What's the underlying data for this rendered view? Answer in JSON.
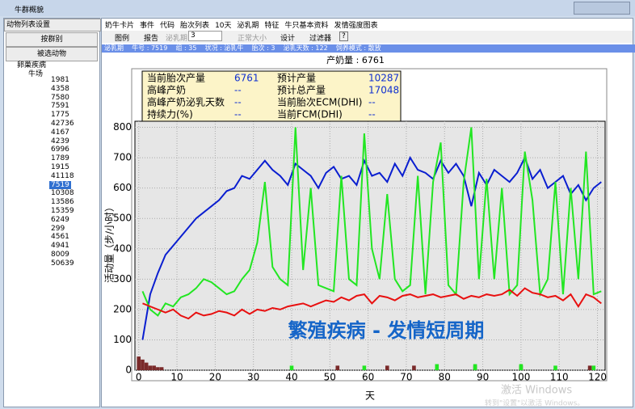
{
  "window": {
    "title": "牛群概貌"
  },
  "menu": [
    "奶牛卡片",
    "事件",
    "代码",
    "胎次列表",
    "10天",
    "泌乳期",
    "特征",
    "牛只基本资料",
    "发情强度图表"
  ],
  "toolbar": {
    "legend": "图例",
    "report": "报告",
    "lactation": "泌乳期",
    "lactation_value": "3",
    "normal_size": "正常大小",
    "design": "设计",
    "filter": "过滤器",
    "help": "?"
  },
  "status_bar": "泌乳期    牛号 : 7519    组 : 35    状况 : 泌乳牛    胎次 : 3    泌乳天数 : 122    饲养模式 : 散放",
  "left_panel": {
    "dropdown": "动物列表设置",
    "by_group": "按群别",
    "selected_animals": "被选动物",
    "tree": {
      "root": "卵巢疾病",
      "farm": "牛场",
      "animals": [
        "1981",
        "4358",
        "7580",
        "7591",
        "1775",
        "42736",
        "4167",
        "4239",
        "6996",
        "1789",
        "1915",
        "41118",
        "7519",
        "10308",
        "13586",
        "15359",
        "6249",
        "299",
        "4561",
        "4941",
        "8009",
        "50639"
      ]
    }
  },
  "info_box": [
    [
      "当前胎次产量",
      6761,
      "预计产量",
      10287
    ],
    [
      "高峰产奶",
      "--",
      "预计总产量",
      17048
    ],
    [
      "高峰产奶泌乳天数",
      "--",
      "当前胎次ECM(DHI)",
      "--"
    ],
    [
      "持续力(%)",
      "--",
      "当前FCM(DHI)",
      "--"
    ]
  ],
  "overlay_text": "繁殖疾病 - 发情短周期",
  "watermark": [
    "激活 Windows",
    "转到\"设置\"以激活 Windows。"
  ],
  "chart_data": {
    "type": "line",
    "title": "产奶量 : 6761",
    "x_label": "天",
    "y_label": "活动量（步/小时）",
    "xlim": [
      -1,
      122
    ],
    "xticks": [
      0,
      10,
      20,
      30,
      40,
      50,
      60,
      70,
      80,
      90,
      100,
      110,
      120
    ],
    "ylim": [
      0,
      820
    ],
    "yticks": [
      0,
      100,
      200,
      300,
      400,
      500,
      600,
      700,
      800
    ],
    "grid": true,
    "x": [
      1,
      3,
      5,
      7,
      9,
      11,
      13,
      15,
      17,
      19,
      21,
      23,
      25,
      27,
      29,
      31,
      33,
      35,
      37,
      39,
      41,
      43,
      45,
      47,
      49,
      51,
      53,
      55,
      57,
      59,
      61,
      63,
      65,
      67,
      69,
      71,
      73,
      75,
      77,
      79,
      81,
      83,
      85,
      87,
      89,
      91,
      93,
      95,
      97,
      99,
      101,
      103,
      105,
      107,
      109,
      111,
      113,
      115,
      117,
      119,
      121
    ],
    "series": [
      {
        "color": "#0a1ed0",
        "values": [
          100,
          250,
          320,
          380,
          410,
          440,
          470,
          500,
          520,
          540,
          560,
          590,
          600,
          640,
          630,
          660,
          690,
          660,
          640,
          610,
          680,
          660,
          640,
          600,
          650,
          670,
          630,
          640,
          610,
          690,
          640,
          650,
          620,
          680,
          640,
          700,
          660,
          650,
          630,
          690,
          650,
          680,
          640,
          540,
          650,
          610,
          660,
          640,
          620,
          650,
          700,
          630,
          660,
          600,
          620,
          640,
          580,
          610,
          560,
          600,
          620
        ]
      },
      {
        "color": "#22e622",
        "values": [
          260,
          200,
          180,
          220,
          210,
          240,
          250,
          270,
          300,
          290,
          270,
          250,
          260,
          300,
          330,
          420,
          620,
          340,
          300,
          280,
          800,
          330,
          600,
          280,
          270,
          260,
          640,
          300,
          280,
          780,
          400,
          300,
          580,
          300,
          260,
          280,
          640,
          250,
          620,
          750,
          280,
          250,
          620,
          800,
          300,
          630,
          300,
          600,
          250,
          280,
          720,
          560,
          250,
          300,
          620,
          250,
          600,
          300,
          720,
          250,
          260
        ]
      },
      {
        "color": "#e81010",
        "values": [
          220,
          210,
          200,
          190,
          200,
          180,
          170,
          190,
          180,
          185,
          195,
          190,
          180,
          200,
          185,
          200,
          195,
          205,
          200,
          210,
          215,
          220,
          210,
          220,
          230,
          225,
          240,
          230,
          245,
          250,
          220,
          245,
          240,
          230,
          245,
          250,
          240,
          245,
          250,
          240,
          245,
          250,
          235,
          245,
          240,
          250,
          245,
          250,
          265,
          245,
          270,
          255,
          250,
          240,
          245,
          230,
          250,
          210,
          250,
          240,
          220
        ]
      }
    ],
    "bars": [
      {
        "color": "#7a2a2a",
        "x": [
          0,
          1,
          2,
          3,
          4,
          5,
          6,
          52,
          65,
          72,
          88,
          100,
          118
        ],
        "values": [
          45,
          35,
          25,
          15,
          15,
          10,
          10,
          15,
          15,
          15,
          15,
          15,
          15
        ]
      },
      {
        "color": "#22e622",
        "x": [
          40,
          59,
          78,
          88,
          100,
          109,
          119
        ],
        "values": [
          15,
          15,
          20,
          20,
          20,
          15,
          15
        ]
      }
    ]
  }
}
